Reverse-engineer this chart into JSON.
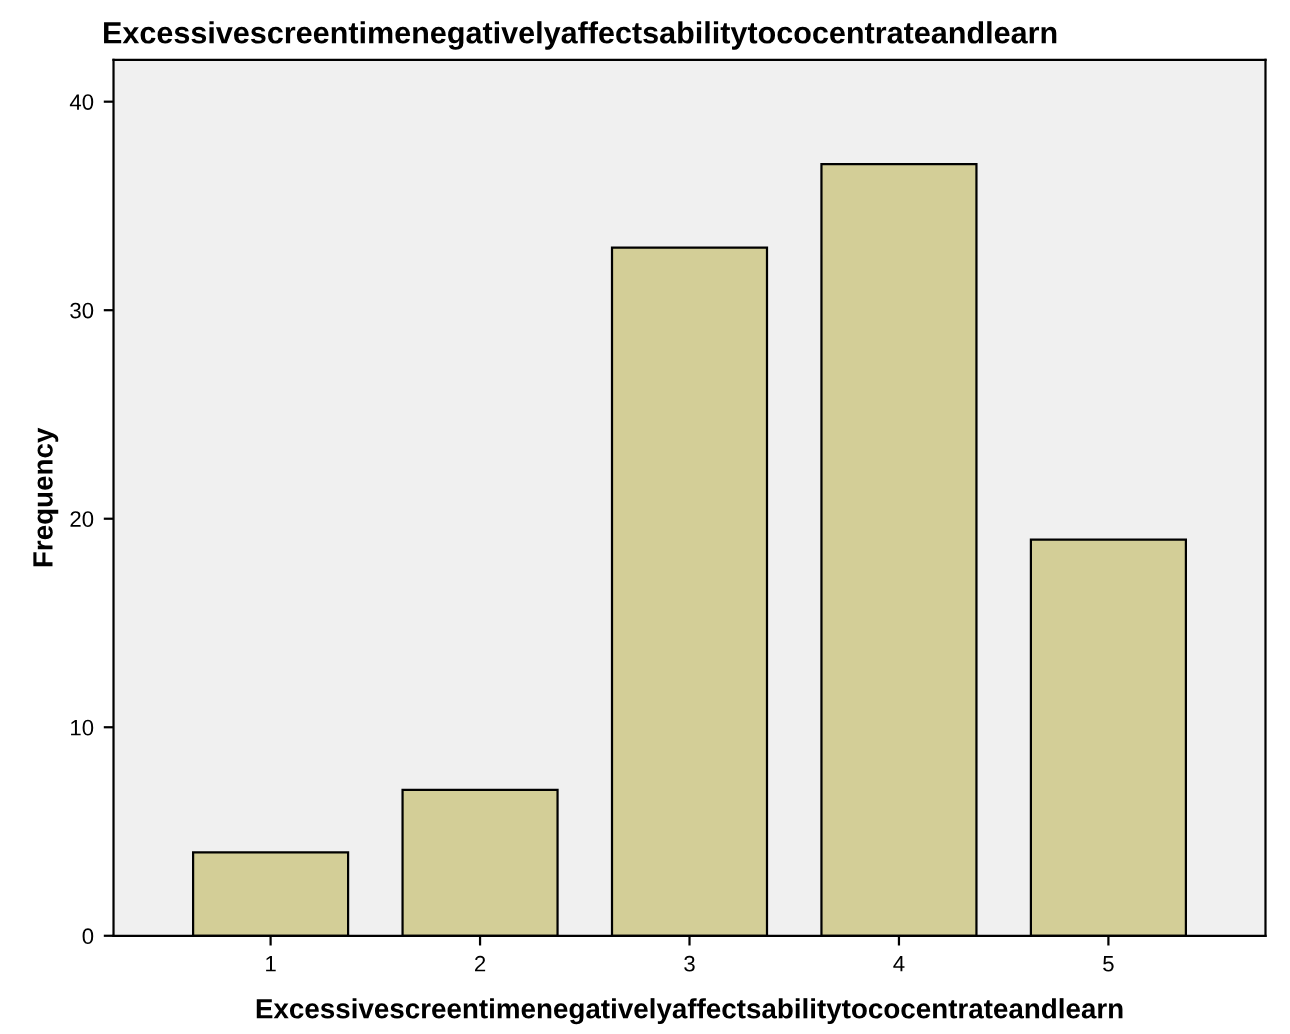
{
  "chart_data": {
    "type": "bar",
    "title": "Excessivescreentimenegativelyaffectsabilitytococentrateandlearn",
    "xlabel": "Excessivescreentimenegativelyaffectsabilitytococentrateandlearn",
    "ylabel": "Frequency",
    "categories": [
      "1",
      "2",
      "3",
      "4",
      "5"
    ],
    "values": [
      4,
      7,
      33,
      37,
      19
    ],
    "color": "#d3ce97",
    "ylim": [
      0,
      42
    ],
    "yticks": [
      0,
      10,
      20,
      30,
      40
    ],
    "grid": false,
    "legend": false
  }
}
